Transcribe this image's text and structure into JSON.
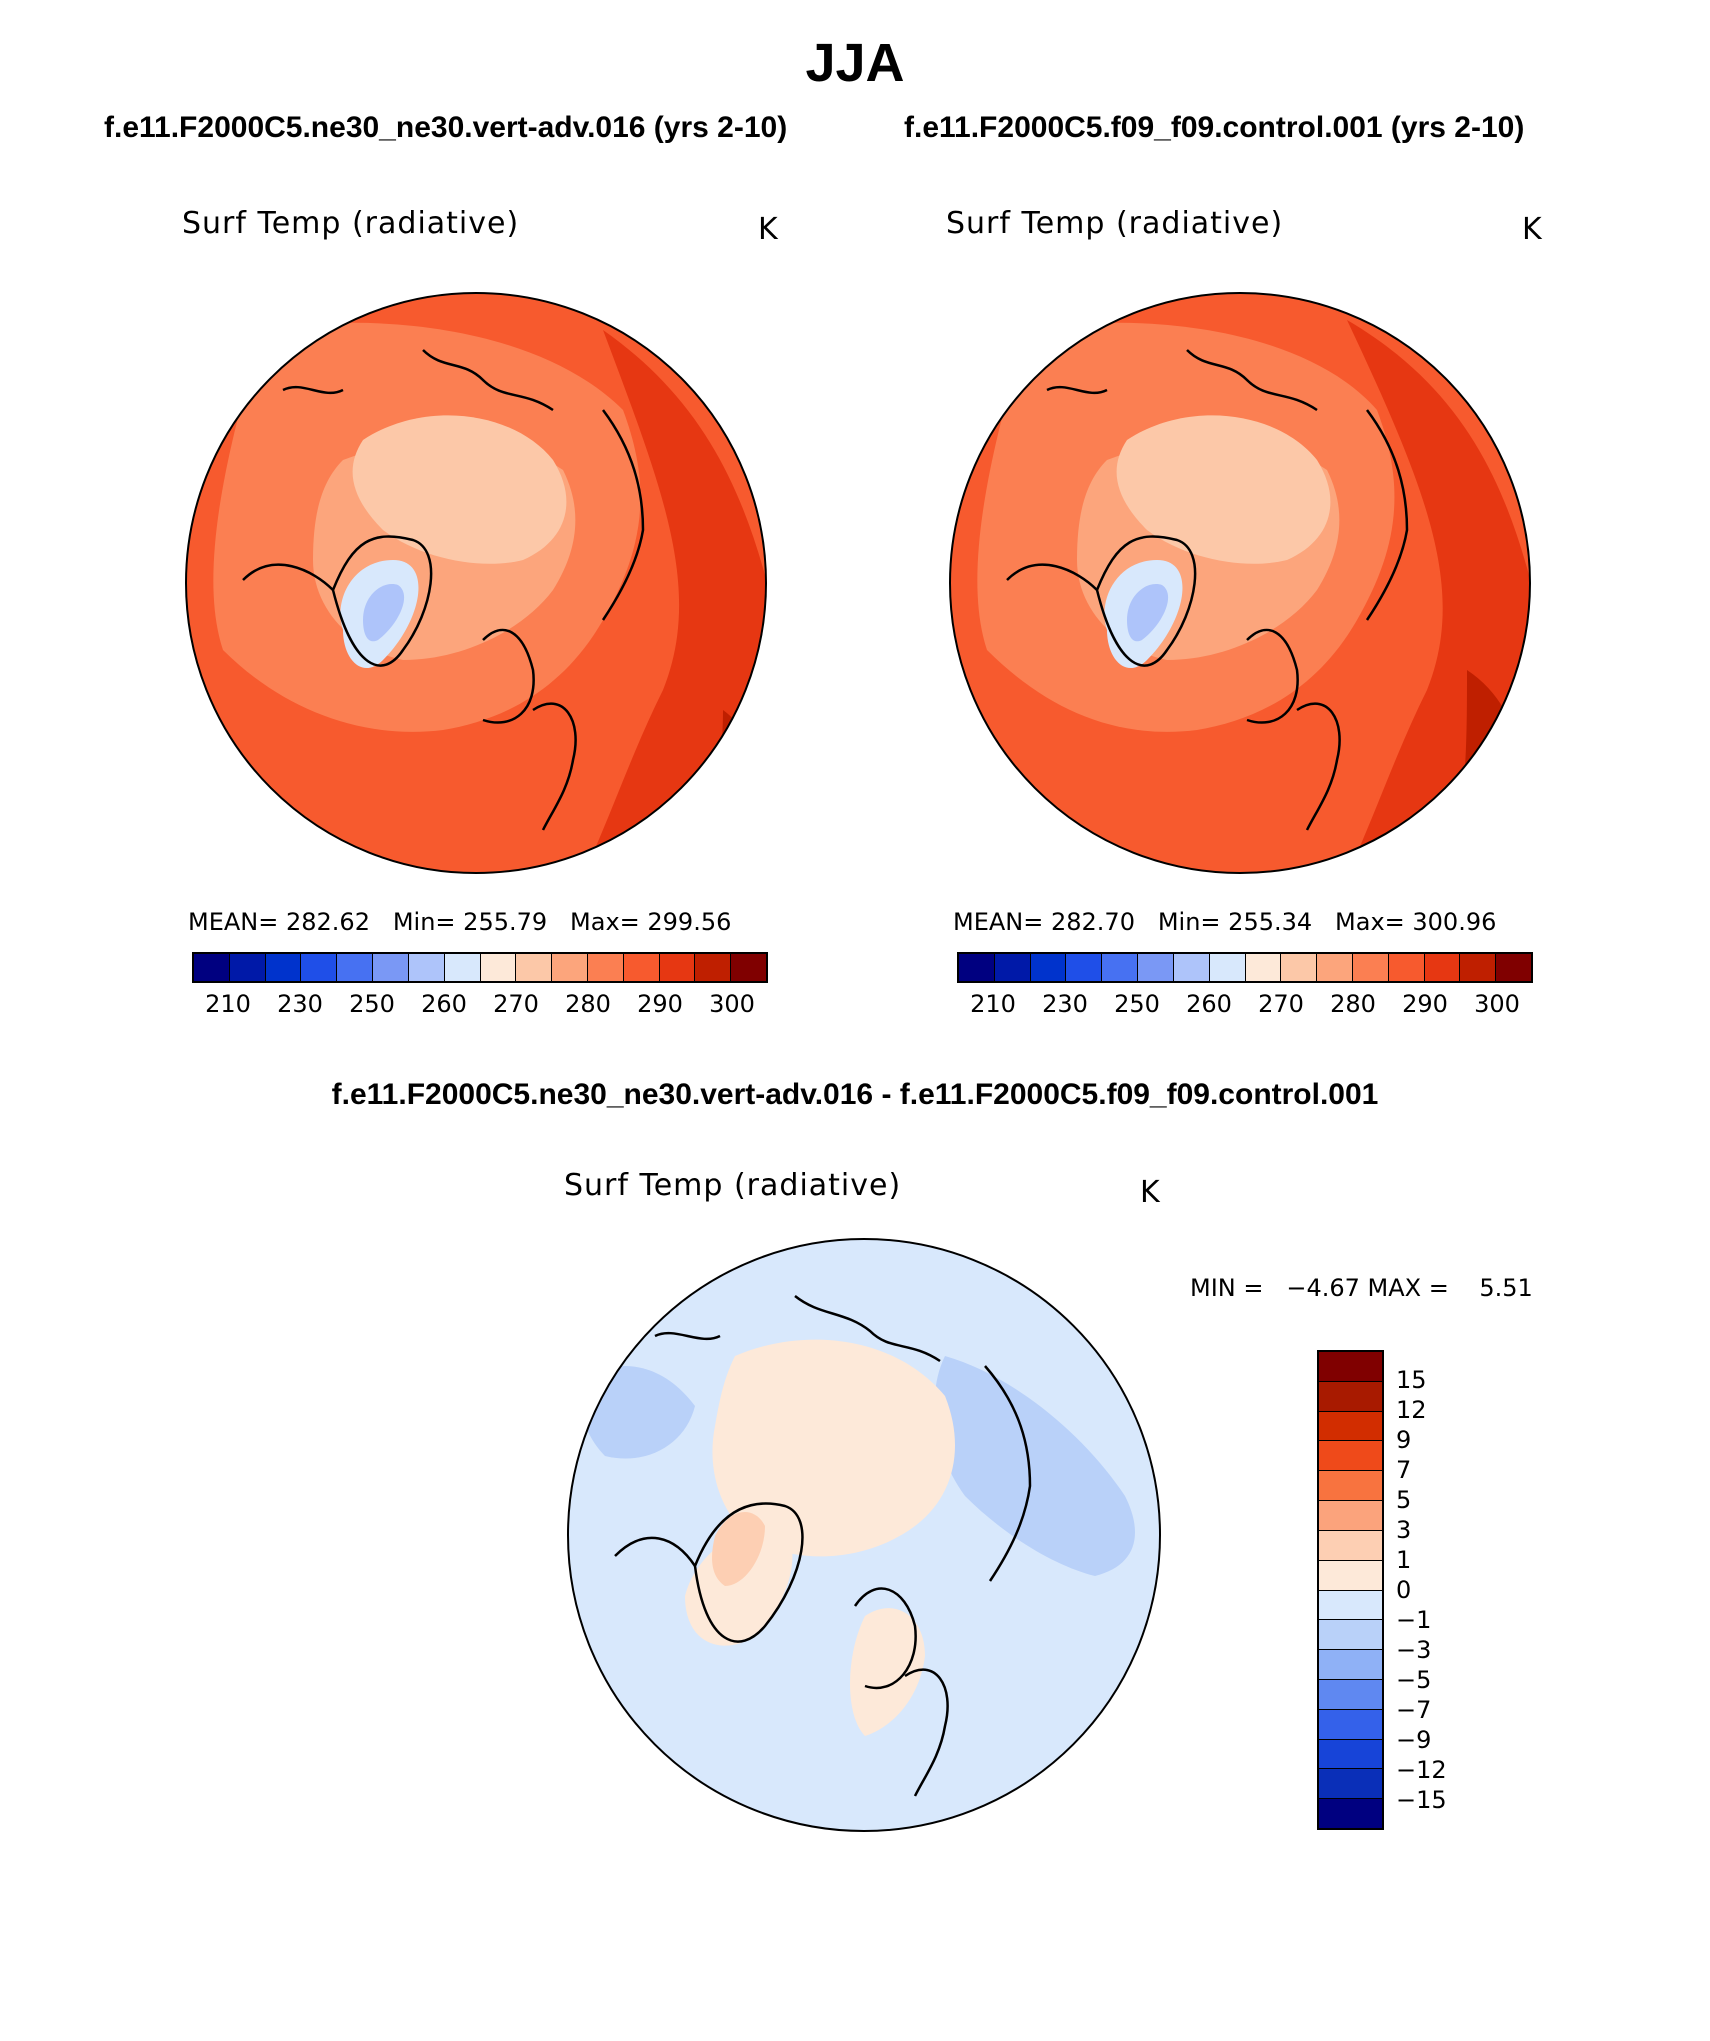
{
  "title": "JJA",
  "panels": [
    {
      "case_title": "f.e11.F2000C5.ne30_ne30.vert-adv.016 (yrs 2-10)",
      "variable": "Surf Temp (radiative)",
      "units": "K",
      "stats": "MEAN= 282.62   Min= 255.79   Max= 299.56",
      "colorbar": {
        "colors": [
          "#000080",
          "#0019a8",
          "#0033cc",
          "#1f4fe8",
          "#4771f2",
          "#7a98f5",
          "#aec4fa",
          "#d8e8fc",
          "#fde9d9",
          "#fcc8a8",
          "#fca57c",
          "#fb7f52",
          "#f75a2e",
          "#e63712",
          "#bf1f00",
          "#800000"
        ],
        "tick_labels": [
          "210",
          "230",
          "250",
          "260",
          "270",
          "280",
          "290",
          "300"
        ]
      }
    },
    {
      "case_title": "f.e11.F2000C5.f09_f09.control.001 (yrs 2-10)",
      "variable": "Surf Temp (radiative)",
      "units": "K",
      "stats": "MEAN= 282.70   Min= 255.34   Max= 300.96",
      "colorbar": {
        "colors": [
          "#000080",
          "#0019a8",
          "#0033cc",
          "#1f4fe8",
          "#4771f2",
          "#7a98f5",
          "#aec4fa",
          "#d8e8fc",
          "#fde9d9",
          "#fcc8a8",
          "#fca57c",
          "#fb7f52",
          "#f75a2e",
          "#e63712",
          "#bf1f00",
          "#800000"
        ],
        "tick_labels": [
          "210",
          "230",
          "250",
          "260",
          "270",
          "280",
          "290",
          "300"
        ]
      }
    }
  ],
  "difference": {
    "title": "f.e11.F2000C5.ne30_ne30.vert-adv.016 - f.e11.F2000C5.f09_f09.control.001",
    "variable": "Surf Temp (radiative)",
    "units": "K",
    "minmax": "MIN =   −4.67 MAX =    5.51",
    "colorbar": {
      "colors": [
        "#800000",
        "#a81a00",
        "#d22d00",
        "#ef4a1a",
        "#f8733f",
        "#fba37c",
        "#fdcfb3",
        "#fde9d9",
        "#d8e8fc",
        "#b9d1f9",
        "#8fb1f6",
        "#5f88f1",
        "#3461ea",
        "#1744d8",
        "#0a2fb8",
        "#000080"
      ],
      "tick_labels": [
        "15",
        "12",
        "9",
        "7",
        "5",
        "3",
        "1",
        "0",
        "−1",
        "−3",
        "−5",
        "−7",
        "−9",
        "−12",
        "−15"
      ]
    }
  }
}
